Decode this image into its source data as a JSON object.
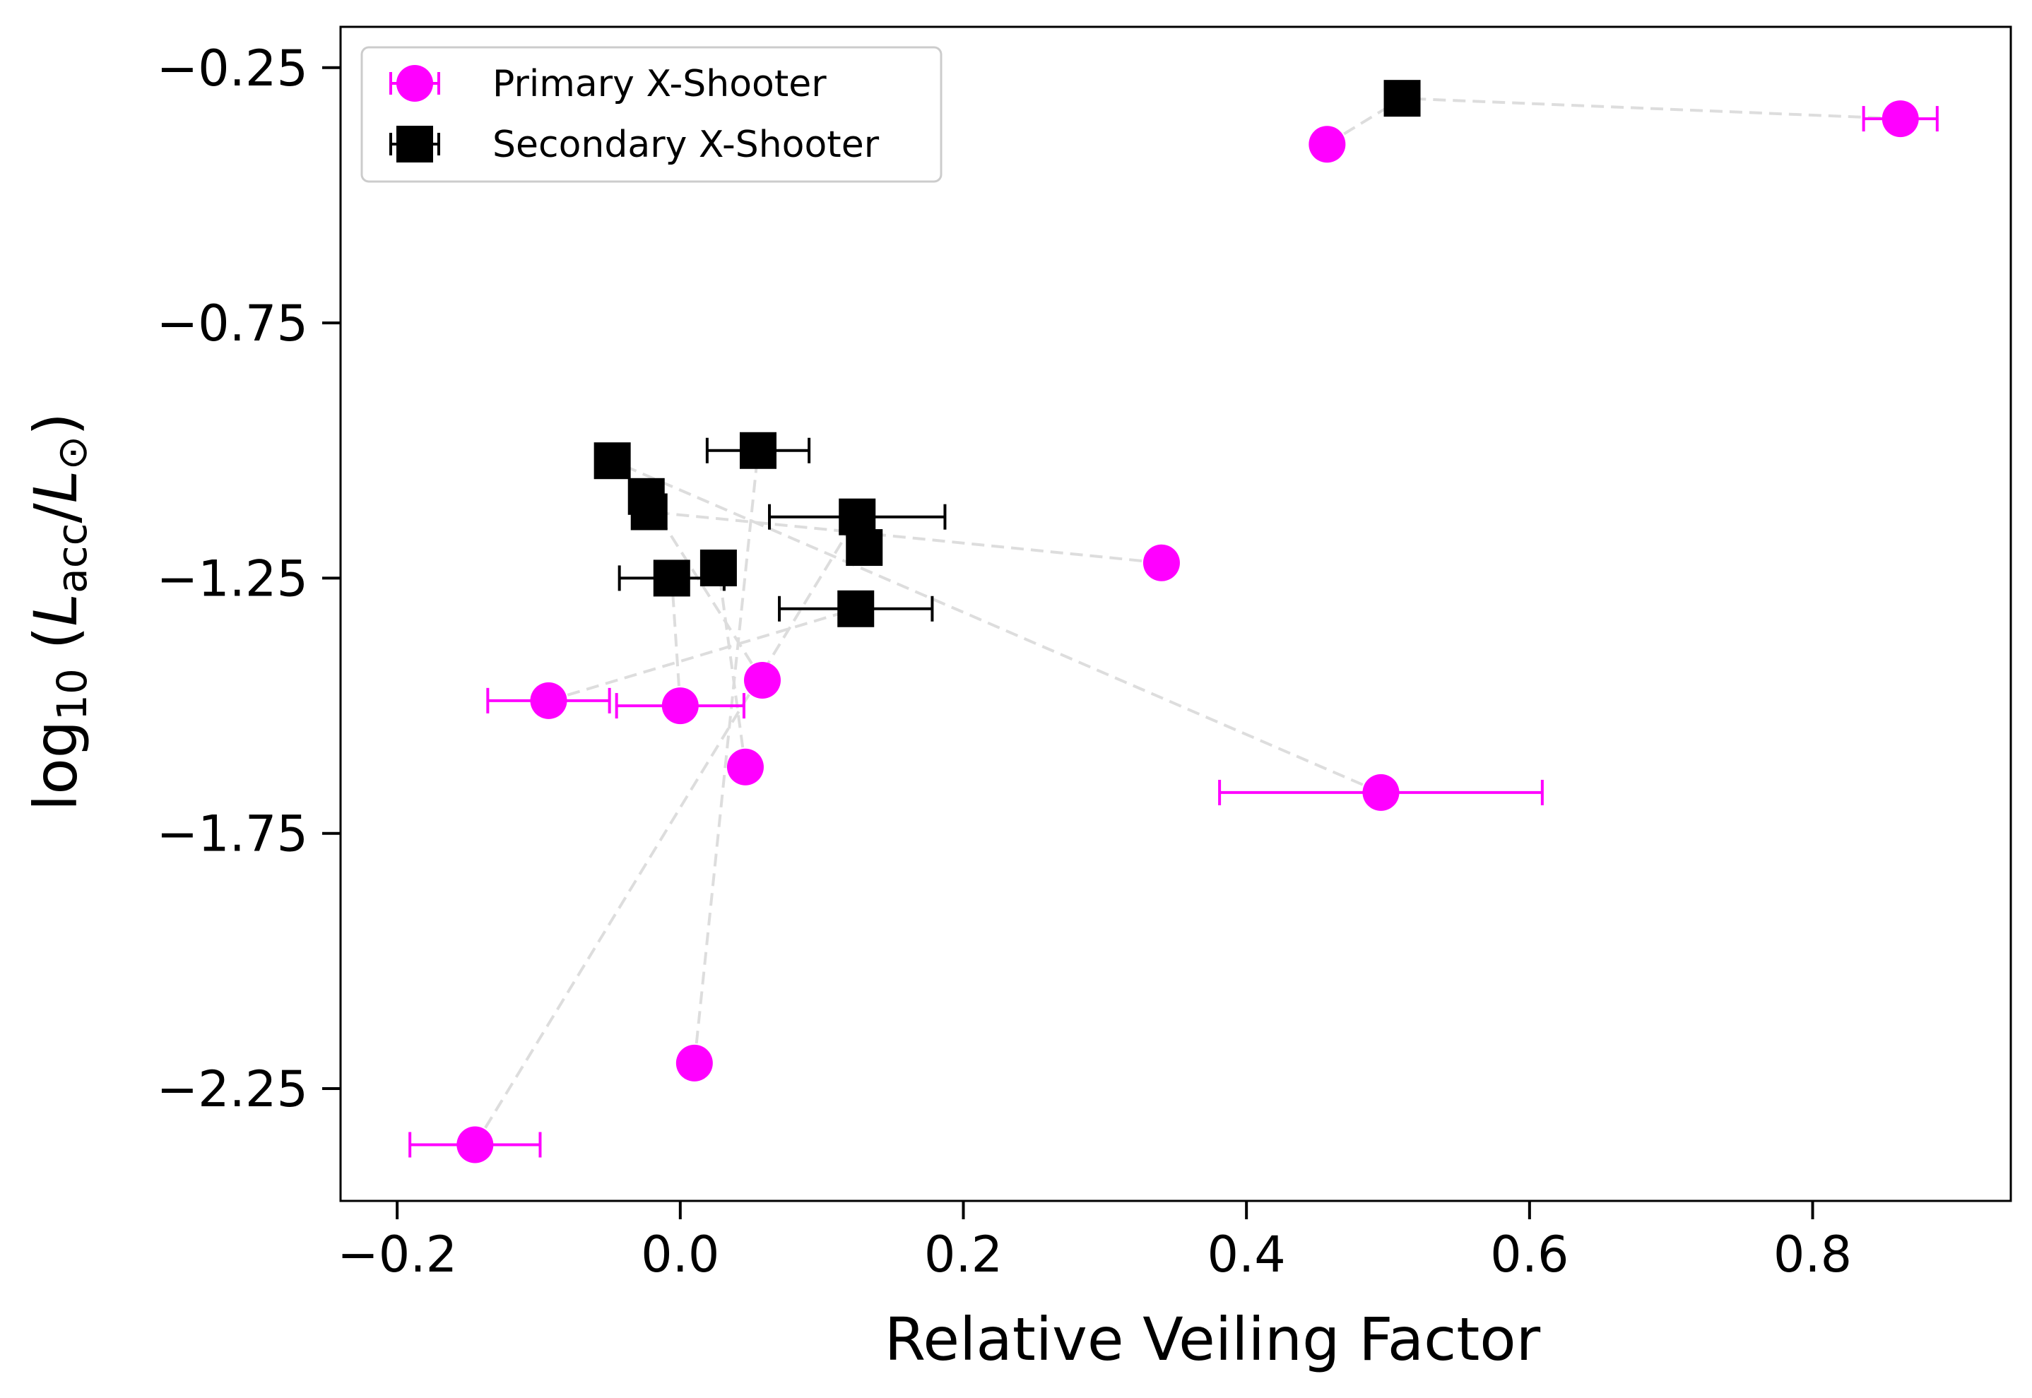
{
  "chart_data": {
    "type": "scatter",
    "xlabel": "Relative Veiling Factor",
    "ylabel": {
      "prefix": "log",
      "sub": "10",
      "open": " (",
      "num": "L",
      "num_sub": "acc",
      "slash": "/",
      "den": "L",
      "den_sub": "⊙",
      "close": ")"
    },
    "xlim": [
      -0.24,
      0.94
    ],
    "ylim": [
      -2.47,
      -0.17
    ],
    "xticks": [
      {
        "value": -0.2,
        "label": "−0.2"
      },
      {
        "value": 0.0,
        "label": "0.0"
      },
      {
        "value": 0.2,
        "label": "0.2"
      },
      {
        "value": 0.4,
        "label": "0.4"
      },
      {
        "value": 0.6,
        "label": "0.6"
      },
      {
        "value": 0.8,
        "label": "0.8"
      }
    ],
    "yticks": [
      {
        "value": -0.25,
        "label": "−0.25"
      },
      {
        "value": -0.75,
        "label": "−0.75"
      },
      {
        "value": -1.25,
        "label": "−1.25"
      },
      {
        "value": -1.75,
        "label": "−1.75"
      },
      {
        "value": -2.25,
        "label": "−2.25"
      }
    ],
    "legend": {
      "position": "top-left",
      "entries": [
        {
          "label": "Primary X-Shooter",
          "marker": "circle",
          "color": "#ff00ff"
        },
        {
          "label": "Secondary X-Shooter",
          "marker": "square",
          "color": "#000000"
        }
      ]
    },
    "series": [
      {
        "name": "Primary X-Shooter",
        "marker": "circle",
        "color": "#ff00ff",
        "points": [
          {
            "x": 0.862,
            "y": -0.35,
            "xerr": 0.026
          },
          {
            "x": 0.457,
            "y": -0.4,
            "xerr": 0
          },
          {
            "x": 0.34,
            "y": -1.22,
            "xerr": 0
          },
          {
            "x": 0.495,
            "y": -1.67,
            "xerr": 0.114
          },
          {
            "x": 0.058,
            "y": -1.45,
            "xerr": 0
          },
          {
            "x": -0.093,
            "y": -1.49,
            "xerr": 0.043
          },
          {
            "x": 0.0,
            "y": -1.5,
            "xerr": 0.045
          },
          {
            "x": 0.046,
            "y": -1.62,
            "xerr": 0
          },
          {
            "x": 0.01,
            "y": -2.2,
            "xerr": 0
          },
          {
            "x": -0.145,
            "y": -2.36,
            "xerr": 0.046
          }
        ]
      },
      {
        "name": "Secondary X-Shooter",
        "marker": "square",
        "color": "#000000",
        "points": [
          {
            "x": 0.51,
            "y": -0.31,
            "xerr": 0
          },
          {
            "x": 0.055,
            "y": -1.0,
            "xerr": 0.036
          },
          {
            "x": -0.048,
            "y": -1.02,
            "xerr": 0
          },
          {
            "x": -0.024,
            "y": -1.09,
            "xerr": 0
          },
          {
            "x": -0.022,
            "y": -1.12,
            "xerr": 0
          },
          {
            "x": 0.125,
            "y": -1.13,
            "xerr": 0.062
          },
          {
            "x": 0.13,
            "y": -1.19,
            "xerr": 0
          },
          {
            "x": 0.027,
            "y": -1.23,
            "xerr": 0
          },
          {
            "x": -0.006,
            "y": -1.25,
            "xerr": 0.037
          },
          {
            "x": 0.124,
            "y": -1.31,
            "xerr": 0.054
          }
        ]
      }
    ],
    "connectors": {
      "color": "#dddddd",
      "style": "dashed",
      "pairs": [
        [
          0,
          0
        ],
        [
          1,
          0
        ],
        [
          2,
          4
        ],
        [
          3,
          2
        ],
        [
          4,
          3
        ],
        [
          5,
          9
        ],
        [
          6,
          8
        ],
        [
          7,
          7
        ],
        [
          8,
          1
        ],
        [
          9,
          5
        ]
      ]
    }
  }
}
